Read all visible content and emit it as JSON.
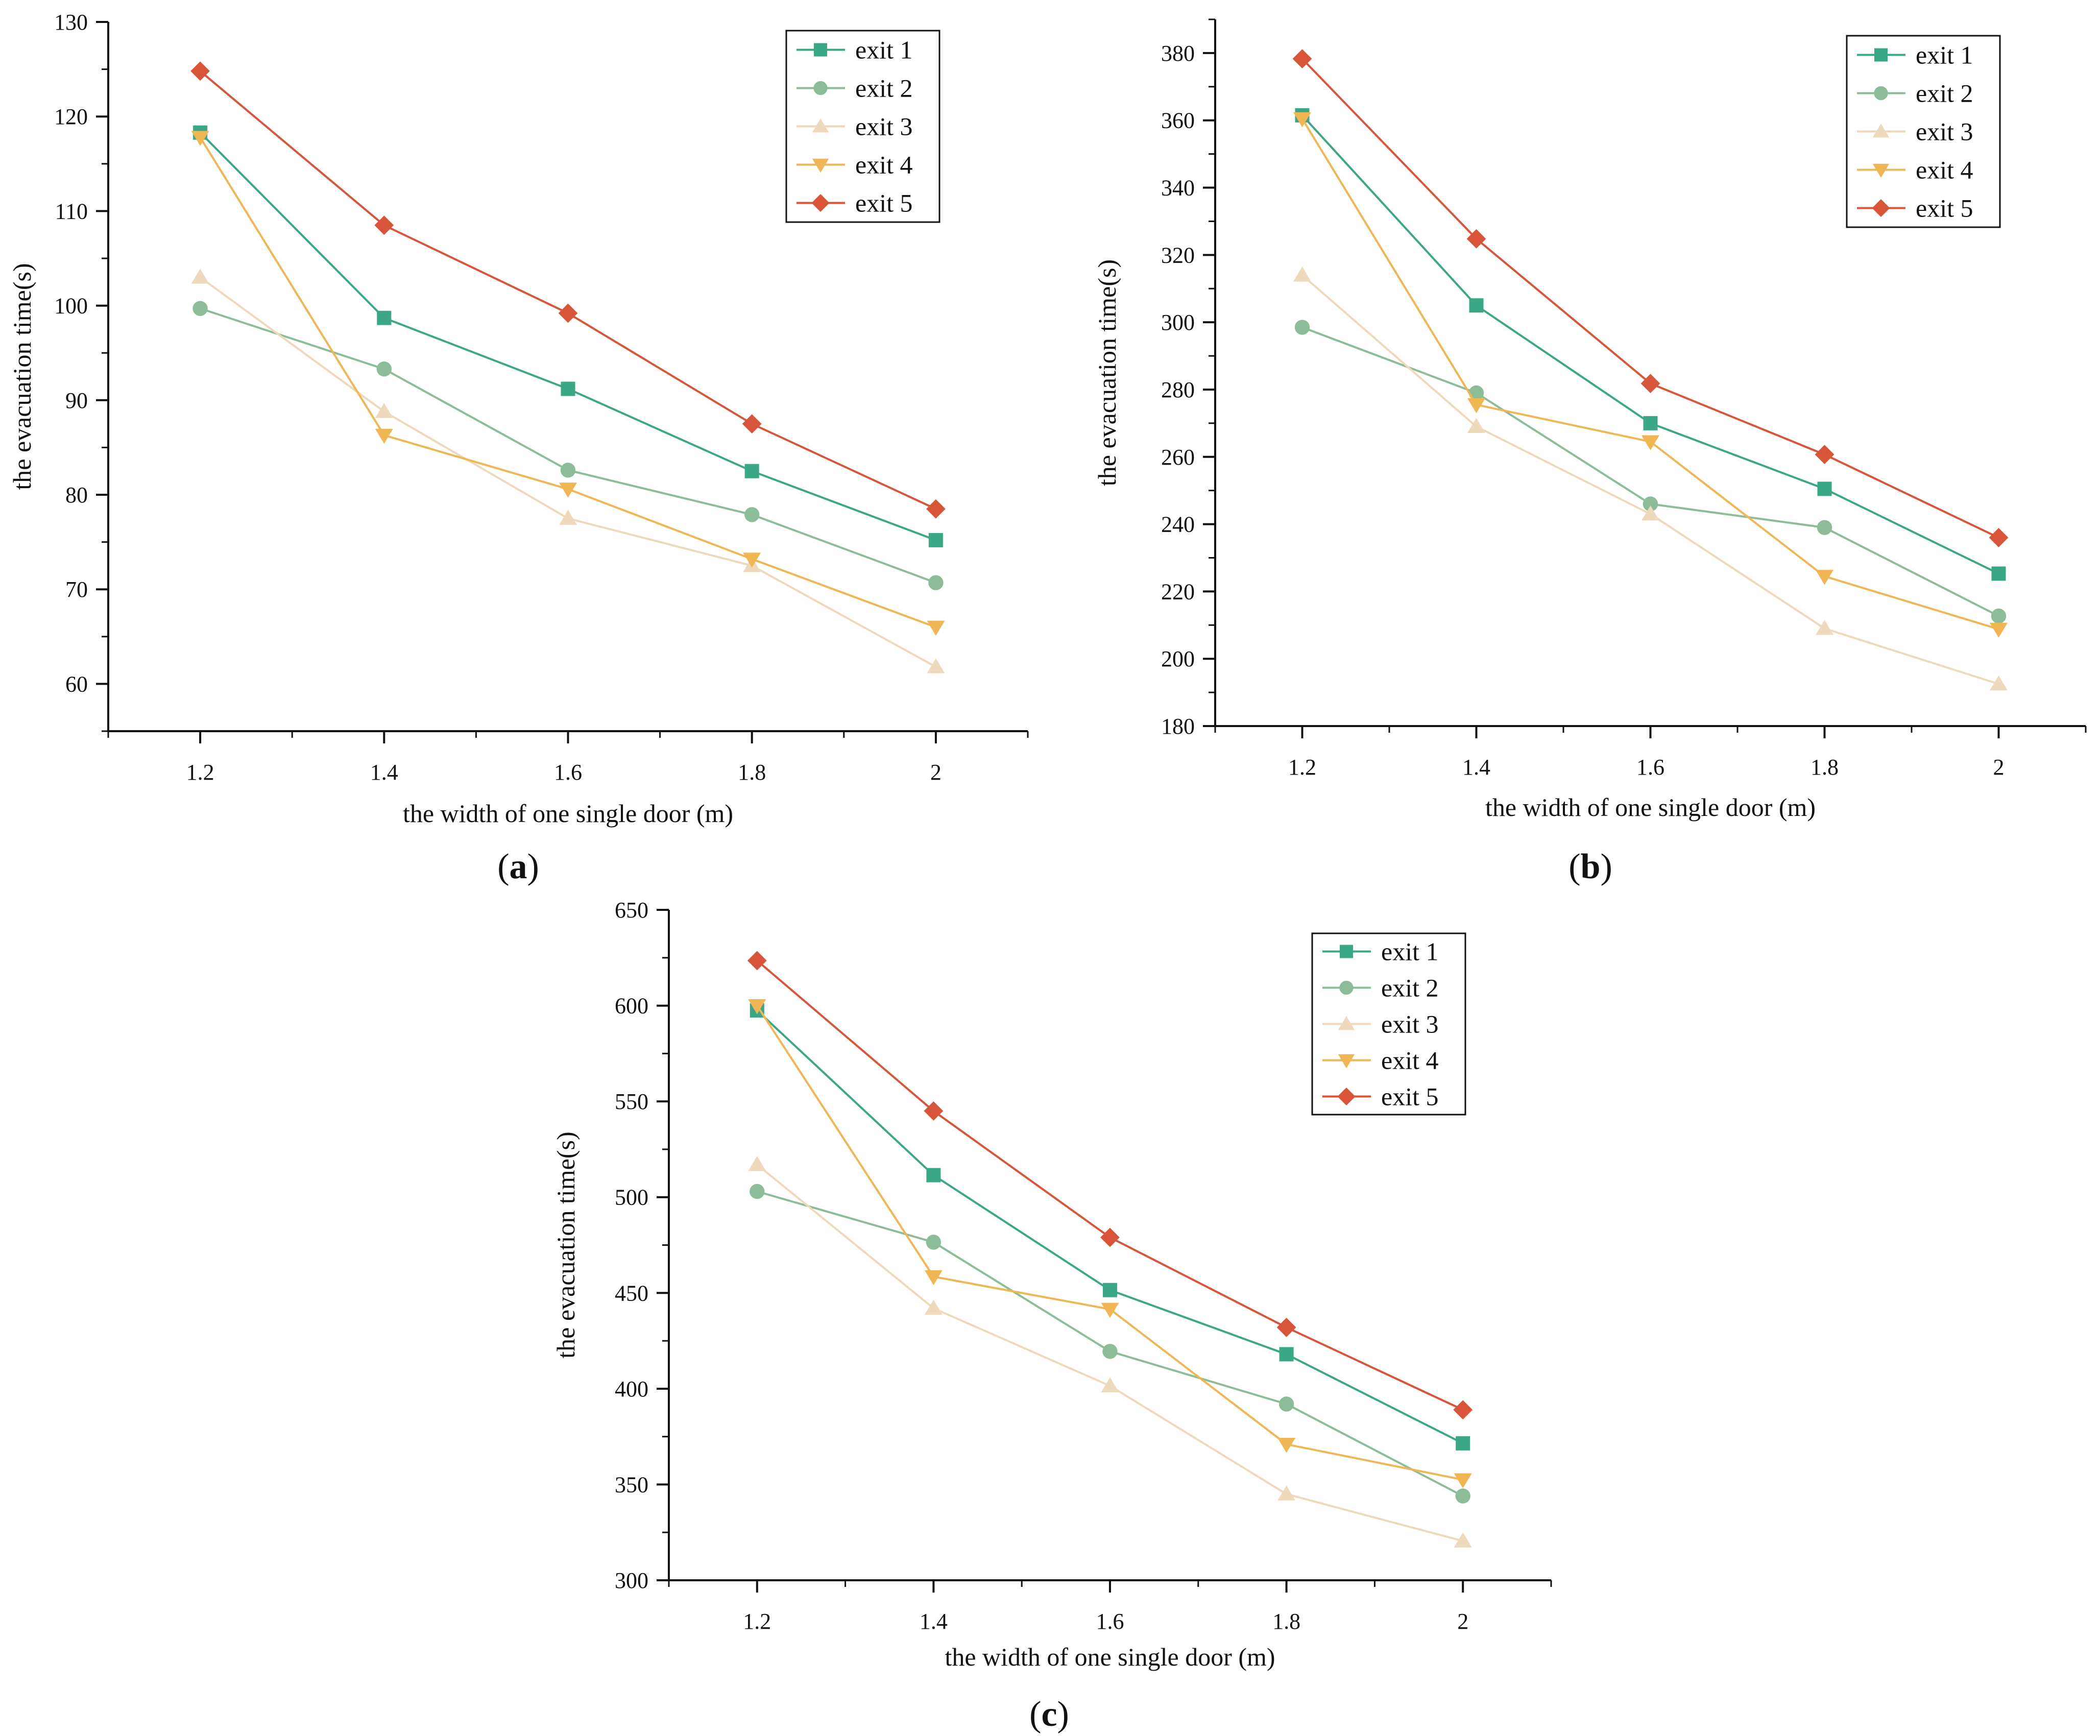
{
  "chart_data": [
    {
      "type": "line",
      "panel_label": "a",
      "xlabel": "the width of one single door (m)",
      "ylabel": "the evacuation time(s)",
      "categories": [
        "1.2",
        "1.4",
        "1.6",
        "1.8",
        "2"
      ],
      "x": [
        1.2,
        1.4,
        1.6,
        1.8,
        2.0
      ],
      "xlim": [
        1.1,
        2.1
      ],
      "ylim": [
        55,
        130
      ],
      "yticks": [
        60,
        70,
        80,
        90,
        100,
        110,
        120,
        130
      ],
      "grid": false,
      "legend_position": "top-right",
      "series": [
        {
          "name": "exit 1",
          "color": "#3aa787",
          "marker": "square",
          "values": [
            118.3,
            98.7,
            91.2,
            82.5,
            75.2
          ]
        },
        {
          "name": "exit 2",
          "color": "#8cbc98",
          "marker": "circle",
          "values": [
            99.7,
            93.3,
            82.6,
            77.9,
            70.7
          ]
        },
        {
          "name": "exit 3",
          "color": "#eed9bd",
          "marker": "triangle-up",
          "values": [
            103.0,
            88.8,
            77.5,
            72.5,
            61.8
          ]
        },
        {
          "name": "exit 4",
          "color": "#f1b654",
          "marker": "triangle-down",
          "values": [
            117.8,
            86.3,
            80.6,
            73.2,
            66.0
          ]
        },
        {
          "name": "exit 5",
          "color": "#d9553a",
          "marker": "diamond",
          "values": [
            124.8,
            108.5,
            99.2,
            87.5,
            78.5
          ]
        }
      ]
    },
    {
      "type": "line",
      "panel_label": "b",
      "xlabel": "the width of one single door (m)",
      "ylabel": "the evacuation time(s)",
      "categories": [
        "1.2",
        "1.4",
        "1.6",
        "1.8",
        "2"
      ],
      "x": [
        1.2,
        1.4,
        1.6,
        1.8,
        2.0
      ],
      "xlim": [
        1.1,
        2.1
      ],
      "ylim": [
        180,
        390
      ],
      "yticks": [
        180,
        200,
        220,
        240,
        260,
        280,
        300,
        320,
        340,
        360,
        380
      ],
      "grid": false,
      "legend_position": "top-right",
      "series": [
        {
          "name": "exit 1",
          "color": "#3aa787",
          "marker": "square",
          "values": [
            361.5,
            305.0,
            270.0,
            250.5,
            225.3
          ]
        },
        {
          "name": "exit 2",
          "color": "#8cbc98",
          "marker": "circle",
          "values": [
            298.5,
            279.0,
            246.0,
            239.0,
            212.7
          ]
        },
        {
          "name": "exit 3",
          "color": "#eed9bd",
          "marker": "triangle-up",
          "values": [
            314.0,
            269.0,
            243.0,
            209.0,
            192.5
          ]
        },
        {
          "name": "exit 4",
          "color": "#f1b654",
          "marker": "triangle-down",
          "values": [
            360.5,
            275.5,
            264.5,
            224.5,
            208.8
          ]
        },
        {
          "name": "exit 5",
          "color": "#d9553a",
          "marker": "diamond",
          "values": [
            378.3,
            324.8,
            281.8,
            260.7,
            236.0
          ]
        }
      ]
    },
    {
      "type": "line",
      "panel_label": "c",
      "xlabel": "the width of one single door (m)",
      "ylabel": "the evacuation time(s)",
      "categories": [
        "1.2",
        "1.4",
        "1.6",
        "1.8",
        "2"
      ],
      "x": [
        1.2,
        1.4,
        1.6,
        1.8,
        2.0
      ],
      "xlim": [
        1.1,
        2.1
      ],
      "ylim": [
        300,
        650
      ],
      "yticks": [
        300,
        350,
        400,
        450,
        500,
        550,
        600,
        650
      ],
      "grid": false,
      "legend_position": "top-right",
      "series": [
        {
          "name": "exit 1",
          "color": "#3aa787",
          "marker": "square",
          "values": [
            597.5,
            511.5,
            451.5,
            418.0,
            371.5
          ]
        },
        {
          "name": "exit 2",
          "color": "#8cbc98",
          "marker": "circle",
          "values": [
            503.0,
            476.5,
            419.5,
            392.0,
            344.0
          ]
        },
        {
          "name": "exit 3",
          "color": "#eed9bd",
          "marker": "triangle-up",
          "values": [
            517.0,
            442.0,
            401.5,
            345.0,
            320.5
          ]
        },
        {
          "name": "exit 4",
          "color": "#f1b654",
          "marker": "triangle-down",
          "values": [
            600.0,
            458.5,
            441.5,
            371.0,
            352.5
          ]
        },
        {
          "name": "exit 5",
          "color": "#d9553a",
          "marker": "diamond",
          "values": [
            623.5,
            545.0,
            479.0,
            432.0,
            389.0
          ]
        }
      ]
    }
  ]
}
